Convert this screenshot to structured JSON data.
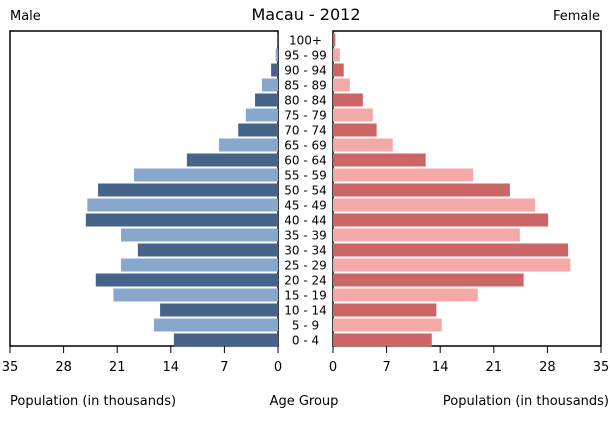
{
  "chart_data": {
    "type": "bar",
    "title": "Macau - 2012",
    "left_label": "Male",
    "right_label": "Female",
    "xlabel_left": "Population (in thousands)",
    "xlabel_center": "Age Group",
    "xlabel_right": "Population (in thousands)",
    "xlim": [
      0,
      35
    ],
    "xticks": [
      35,
      28,
      21,
      14,
      7,
      0
    ],
    "xticks_right": [
      0,
      7,
      14,
      21,
      28,
      35
    ],
    "categories": [
      "100+",
      "95 - 99",
      "90 - 94",
      "85 - 89",
      "80 - 84",
      "75 - 79",
      "70 - 74",
      "65 - 69",
      "60 - 64",
      "55 - 59",
      "50 - 54",
      "45 - 49",
      "40 - 44",
      "35 - 39",
      "30 - 34",
      "25 - 29",
      "20 - 24",
      "15 - 19",
      "10 - 14",
      "5 - 9",
      "0 - 4"
    ],
    "series": [
      {
        "name": "Male",
        "values": [
          0.1,
          0.3,
          0.9,
          2.1,
          3.0,
          4.2,
          5.2,
          7.7,
          11.9,
          18.8,
          23.5,
          24.9,
          25.1,
          20.5,
          18.3,
          20.5,
          23.8,
          21.5,
          15.4,
          16.2,
          13.6
        ]
      },
      {
        "name": "Female",
        "values": [
          0.3,
          0.9,
          1.4,
          2.2,
          3.9,
          5.2,
          5.7,
          7.8,
          12.1,
          18.3,
          23.1,
          26.4,
          28.1,
          24.4,
          30.7,
          31.0,
          24.9,
          18.9,
          13.5,
          14.2,
          12.9
        ]
      }
    ],
    "colors": {
      "male_dark": "#46648a",
      "male_light": "#87a8cc",
      "female_dark": "#cc6666",
      "female_light": "#f4a9a9"
    }
  }
}
